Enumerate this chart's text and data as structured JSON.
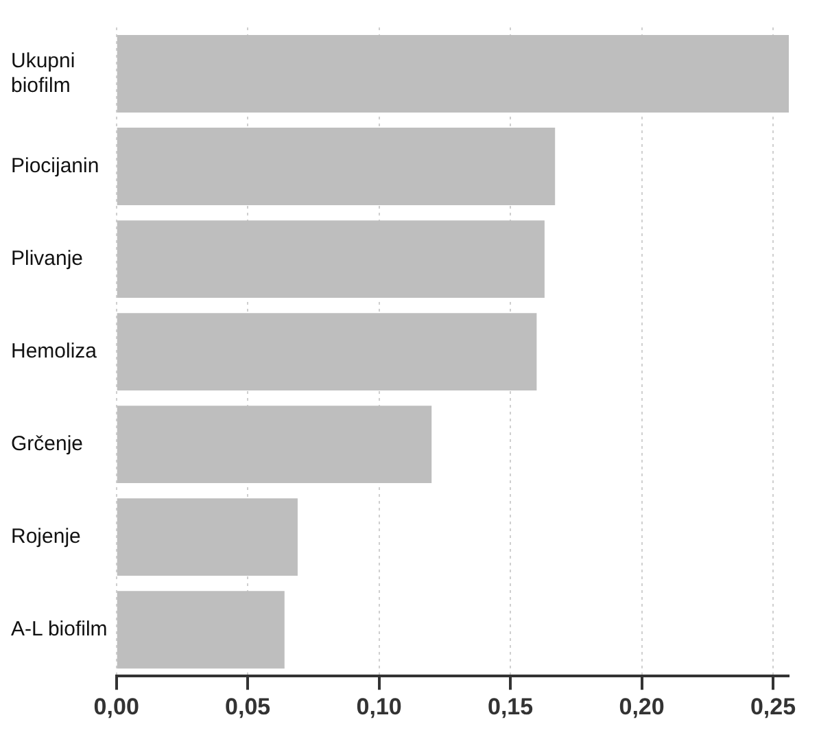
{
  "chart_data": {
    "type": "bar",
    "orientation": "horizontal",
    "categories": [
      "Ukupni\nbiofilm",
      "Piocijanin",
      "Plivanje",
      "Hemoliza",
      "Grčenje",
      "Rojenje",
      "A-L biofilm"
    ],
    "values": [
      0.256,
      0.167,
      0.163,
      0.16,
      0.12,
      0.069,
      0.064
    ],
    "color": "#bebebe",
    "xlim": [
      0,
      0.256
    ],
    "xticks": [
      {
        "value": 0,
        "label": "0,00"
      },
      {
        "value": 0.05,
        "label": "0,05"
      },
      {
        "value": 0.1,
        "label": "0,10"
      },
      {
        "value": 0.15,
        "label": "0,15"
      },
      {
        "value": 0.2,
        "label": "0,20"
      },
      {
        "value": 0.25,
        "label": "0,25"
      }
    ],
    "grid": "x",
    "legend": false
  }
}
